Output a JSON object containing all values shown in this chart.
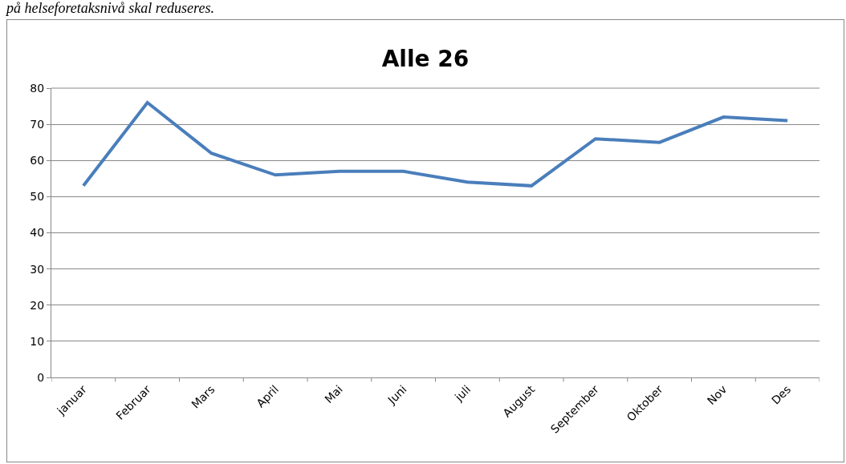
{
  "chart_data": {
    "type": "line",
    "title": "Alle 26",
    "annotations": [
      "på helseforetaksnivå skal reduseres."
    ],
    "categories": [
      "januar",
      "Februar",
      "Mars",
      "April",
      "Mai",
      "Juni",
      "juli",
      "August",
      "September",
      "Oktober",
      "Nov",
      "Des"
    ],
    "values": [
      53,
      76,
      62,
      56,
      57,
      57,
      54,
      53,
      66,
      65,
      72,
      71
    ],
    "color": "#4a7ebb",
    "ylim": [
      0,
      80
    ],
    "yticks": [
      0,
      10,
      20,
      30,
      40,
      50,
      60,
      70,
      80
    ],
    "grid": "y",
    "marker": "none",
    "line_style": "solid"
  }
}
